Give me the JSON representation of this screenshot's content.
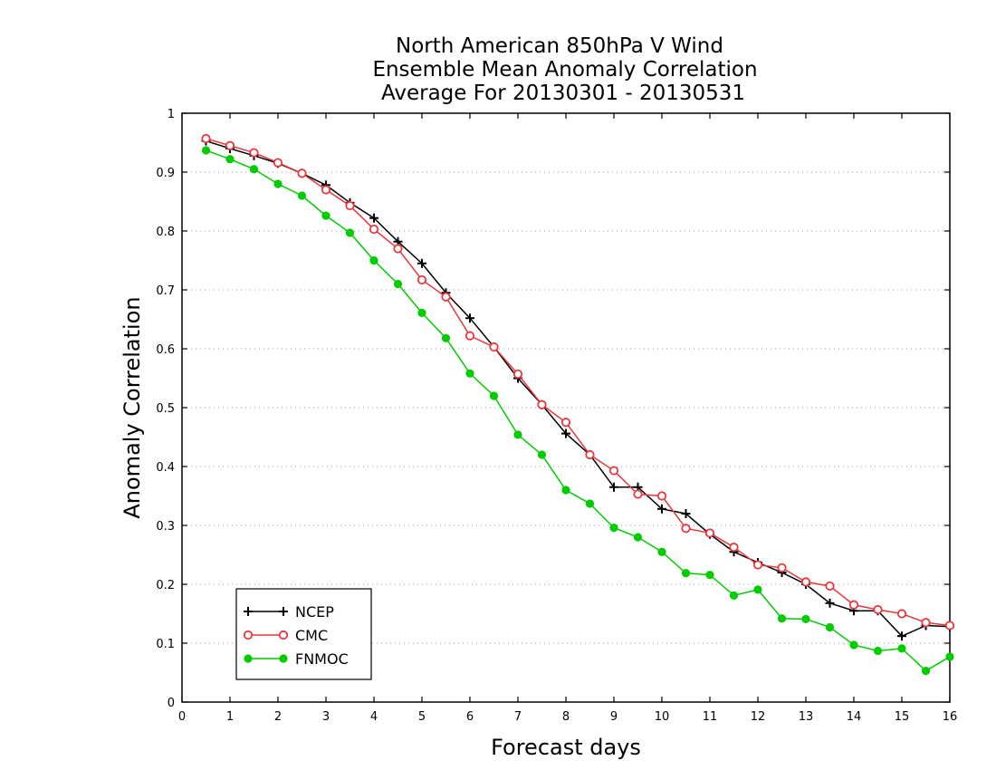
{
  "chart_data": {
    "type": "line",
    "title_lines": [
      "North American 850hPa V Wind",
      "Ensemble Mean Anomaly Correlation",
      "Average For 20130301 - 20130531"
    ],
    "xlabel": "Forecast days",
    "ylabel": "Anomaly Correlation",
    "xlim": [
      0,
      16
    ],
    "ylim": [
      0,
      1
    ],
    "x_ticks": [
      "0",
      "1",
      "2",
      "3",
      "4",
      "5",
      "6",
      "7",
      "8",
      "9",
      "10",
      "11",
      "12",
      "13",
      "14",
      "15",
      "16"
    ],
    "y_ticks": [
      "0",
      "0.1",
      "0.2",
      "0.3",
      "0.4",
      "0.5",
      "0.6",
      "0.7",
      "0.8",
      "0.9",
      "1"
    ],
    "grid": "horizontal dotted",
    "legend_position": "bottom-left",
    "x": [
      0.5,
      1,
      1.5,
      2,
      2.5,
      3,
      3.5,
      4,
      4.5,
      5,
      5.5,
      6,
      6.5,
      7,
      7.5,
      8,
      8.5,
      9,
      9.5,
      10,
      10.5,
      11,
      11.5,
      12,
      12.5,
      13,
      13.5,
      14,
      14.5,
      15,
      15.5,
      16
    ],
    "series": [
      {
        "name": "NCEP",
        "color": "#000000",
        "marker": "plus",
        "values": [
          0.953,
          0.94,
          0.928,
          0.915,
          0.898,
          0.878,
          0.848,
          0.822,
          0.782,
          0.745,
          0.695,
          0.652,
          0.603,
          0.55,
          0.505,
          0.456,
          0.42,
          0.365,
          0.365,
          0.328,
          0.32,
          0.285,
          0.255,
          0.237,
          0.22,
          0.2,
          0.168,
          0.155,
          0.155,
          0.112,
          0.13,
          0.128
        ]
      },
      {
        "name": "CMC",
        "color": "#e8383d",
        "marker": "open-circle",
        "values": [
          0.957,
          0.945,
          0.933,
          0.916,
          0.898,
          0.87,
          0.843,
          0.803,
          0.77,
          0.717,
          0.688,
          0.622,
          0.603,
          0.557,
          0.505,
          0.475,
          0.42,
          0.393,
          0.353,
          0.35,
          0.295,
          0.287,
          0.263,
          0.233,
          0.228,
          0.204,
          0.197,
          0.165,
          0.157,
          0.15,
          0.135,
          0.13
        ]
      },
      {
        "name": "FNMOC",
        "color": "#00cc00",
        "marker": "filled-circle",
        "values": [
          0.937,
          0.922,
          0.905,
          0.88,
          0.86,
          0.826,
          0.797,
          0.75,
          0.71,
          0.661,
          0.618,
          0.558,
          0.52,
          0.454,
          0.42,
          0.36,
          0.337,
          0.296,
          0.28,
          0.255,
          0.219,
          0.216,
          0.181,
          0.191,
          0.142,
          0.141,
          0.127,
          0.097,
          0.087,
          0.091,
          0.053,
          0.077
        ]
      }
    ]
  }
}
